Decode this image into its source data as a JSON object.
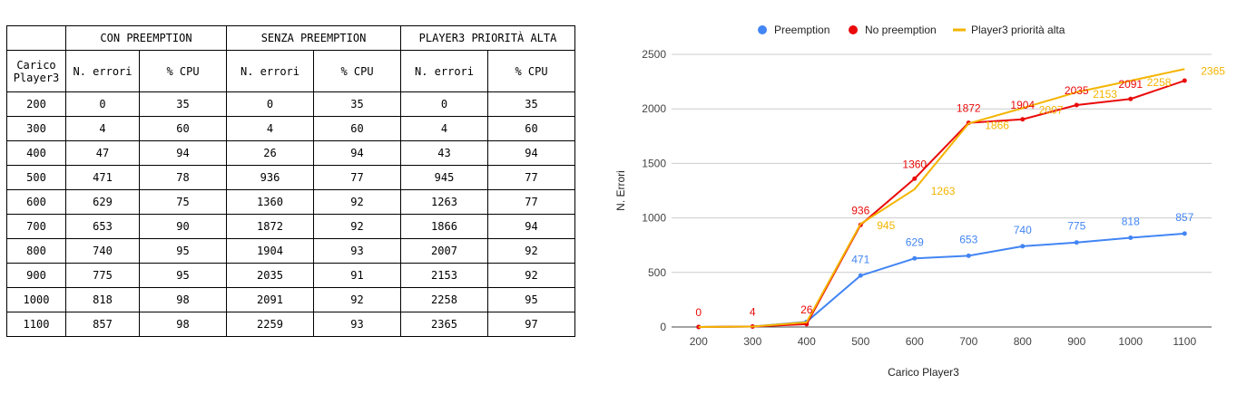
{
  "table": {
    "group_headers": [
      "CON PREEMPTION",
      "SENZA PREEMPTION",
      "PLAYER3 PRIORITÀ ALTA"
    ],
    "row_header_line1": "Carico",
    "row_header_line2": "Player3",
    "sub_headers": [
      "N. errori",
      "% CPU",
      "N. errori",
      "% CPU",
      "N. errori",
      "% CPU"
    ],
    "rows": [
      [
        "200",
        "0",
        "35",
        "0",
        "35",
        "0",
        "35"
      ],
      [
        "300",
        "4",
        "60",
        "4",
        "60",
        "4",
        "60"
      ],
      [
        "400",
        "47",
        "94",
        "26",
        "94",
        "43",
        "94"
      ],
      [
        "500",
        "471",
        "78",
        "936",
        "77",
        "945",
        "77"
      ],
      [
        "600",
        "629",
        "75",
        "1360",
        "92",
        "1263",
        "77"
      ],
      [
        "700",
        "653",
        "90",
        "1872",
        "92",
        "1866",
        "94"
      ],
      [
        "800",
        "740",
        "95",
        "1904",
        "93",
        "2007",
        "92"
      ],
      [
        "900",
        "775",
        "95",
        "2035",
        "91",
        "2153",
        "92"
      ],
      [
        "1000",
        "818",
        "98",
        "2091",
        "92",
        "2258",
        "95"
      ],
      [
        "1100",
        "857",
        "98",
        "2259",
        "93",
        "2365",
        "97"
      ]
    ]
  },
  "chart_data": {
    "type": "line",
    "xlabel": "Carico Player3",
    "ylabel": "N. Errori",
    "x": [
      200,
      300,
      400,
      500,
      600,
      700,
      800,
      900,
      1000,
      1100
    ],
    "ylim": [
      0,
      2500
    ],
    "yticks": [
      0,
      500,
      1000,
      1500,
      2000,
      2500
    ],
    "grid": true,
    "legend_position": "top",
    "series": [
      {
        "name": "Preemption",
        "color": "#4285f4",
        "values": [
          0,
          4,
          47,
          471,
          629,
          653,
          740,
          775,
          818,
          857
        ]
      },
      {
        "name": "No preemption",
        "color": "#ea0a0a",
        "values": [
          0,
          4,
          26,
          936,
          1360,
          1872,
          1904,
          2035,
          2091,
          2259
        ]
      },
      {
        "name": "Player3 priorità alta",
        "color": "#f4b400",
        "values": [
          0,
          4,
          43,
          945,
          1263,
          1866,
          2007,
          2153,
          2258,
          2365
        ]
      }
    ],
    "data_labels": {
      "Preemption": [
        "",
        "",
        "",
        "471",
        "629",
        "653",
        "740",
        "775",
        "818",
        "857"
      ],
      "No preemption": [
        "0",
        "4",
        "26",
        "936",
        "1360",
        "1872",
        "1904",
        "2035",
        "2091",
        ""
      ],
      "Player3 priorità alta": [
        "",
        "",
        "",
        "945",
        "1263",
        "1866",
        "2007",
        "2153",
        "2258",
        "2365"
      ]
    }
  }
}
